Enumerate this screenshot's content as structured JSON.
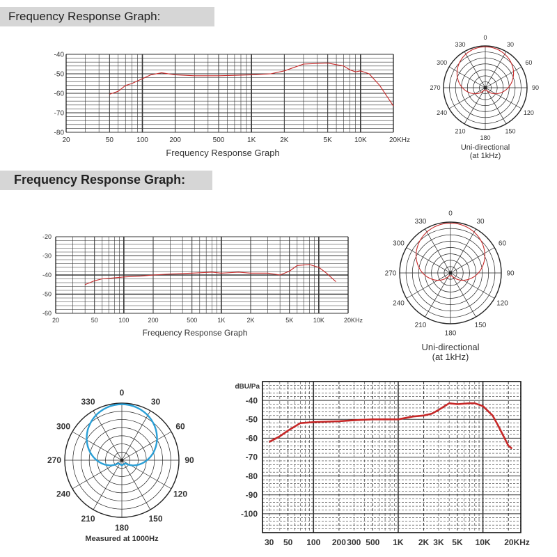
{
  "headers": {
    "top": "Frequency Response Graph:",
    "middle": "Frequency Response Graph:"
  },
  "colors": {
    "curve_red": "#c62828",
    "polar_red": "#c62828",
    "polar_blue": "#2a9fd6",
    "grid": "#333333",
    "banner": "#d6d6d6"
  },
  "freq_ticks": [
    {
      "f": 20,
      "label": "20"
    },
    {
      "f": 50,
      "label": "50"
    },
    {
      "f": 100,
      "label": "100"
    },
    {
      "f": 200,
      "label": "200"
    },
    {
      "f": 500,
      "label": "500"
    },
    {
      "f": 1000,
      "label": "1K"
    },
    {
      "f": 2000,
      "label": "2K"
    },
    {
      "f": 5000,
      "label": "5K"
    },
    {
      "f": 10000,
      "label": "10K"
    },
    {
      "f": 20000,
      "label": "20KHz"
    }
  ],
  "freq_ticks_bottom": [
    {
      "f": 30,
      "label": "30"
    },
    {
      "f": 50,
      "label": "50"
    },
    {
      "f": 100,
      "label": "100"
    },
    {
      "f": 200,
      "label": "200"
    },
    {
      "f": 300,
      "label": "300"
    },
    {
      "f": 500,
      "label": "500"
    },
    {
      "f": 1000,
      "label": "1K"
    },
    {
      "f": 2000,
      "label": "2K"
    },
    {
      "f": 3000,
      "label": "3K"
    },
    {
      "f": 5000,
      "label": "5K"
    },
    {
      "f": 10000,
      "label": "10K"
    },
    {
      "f": 20000,
      "label": "20KHz"
    }
  ],
  "polar_angle_labels": [
    "0",
    "30",
    "60",
    "90",
    "120",
    "150",
    "180",
    "210",
    "240",
    "270",
    "300",
    "330"
  ],
  "chart_data": [
    {
      "type": "line",
      "id": "fr1",
      "xlabel": "Frequency Response Graph",
      "ylabel": "",
      "x_scale": "log",
      "xlim": [
        20,
        20000
      ],
      "ylim": [
        -80,
        -40
      ],
      "yticks": [
        -40,
        -50,
        -60,
        -70,
        -80
      ],
      "grid": true,
      "series": [
        {
          "x": [
            50,
            60,
            70,
            80,
            100,
            120,
            150,
            200,
            300,
            500,
            700,
            1000,
            1500,
            2000,
            3000,
            5000,
            7000,
            8000,
            9000,
            10000,
            12000,
            15000,
            20000
          ],
          "y": [
            -60.5,
            -59,
            -56,
            -55,
            -52.5,
            -50.5,
            -49.5,
            -50.5,
            -51,
            -51,
            -50.8,
            -50.5,
            -50,
            -48.5,
            -45,
            -44.5,
            -46,
            -48,
            -49,
            -48.5,
            -50,
            -56,
            -66.5
          ]
        }
      ]
    },
    {
      "type": "polar",
      "id": "polar1",
      "caption": "Uni-directional\n(at 1kHz)",
      "pattern": "cardioid"
    },
    {
      "type": "line",
      "id": "fr2",
      "xlabel": "Frequency Response Graph",
      "ylabel": "",
      "x_scale": "log",
      "xlim": [
        20,
        20000
      ],
      "ylim": [
        -60,
        -20
      ],
      "yticks": [
        -20,
        -30,
        -40,
        -50,
        -60
      ],
      "grid": true,
      "series": [
        {
          "x": [
            40,
            50,
            60,
            80,
            100,
            150,
            200,
            300,
            500,
            800,
            1000,
            1500,
            2000,
            3000,
            4000,
            5000,
            6000,
            8000,
            10000,
            12000,
            15000
          ],
          "y": [
            -45,
            -43,
            -42,
            -41.5,
            -41,
            -40.5,
            -40,
            -39.5,
            -39,
            -38.5,
            -39,
            -38.5,
            -39,
            -39,
            -40,
            -38,
            -35,
            -34.5,
            -36,
            -39,
            -43.5
          ]
        }
      ]
    },
    {
      "type": "polar",
      "id": "polar2",
      "caption": "Uni-directional\n(at 1kHz)",
      "pattern": "cardioid"
    },
    {
      "type": "polar",
      "id": "polar3",
      "caption": "Measured at 1000Hz",
      "pattern": "supercardioid"
    },
    {
      "type": "line",
      "id": "fr3",
      "ylabel": "dBU/Pa",
      "xlabel": "",
      "x_scale": "log",
      "xlim": [
        25,
        28000
      ],
      "ylim": [
        -110,
        -30
      ],
      "yticks": [
        -40,
        -50,
        -60,
        -70,
        -80,
        -90,
        -100
      ],
      "grid": true,
      "series": [
        {
          "x": [
            30,
            40,
            50,
            70,
            100,
            200,
            300,
            500,
            800,
            1000,
            1500,
            2000,
            2500,
            3000,
            4000,
            5000,
            7000,
            8000,
            10000,
            13000,
            15000,
            18000,
            20000,
            22000
          ],
          "y": [
            -62,
            -59,
            -56,
            -52,
            -51.5,
            -51,
            -50.5,
            -50,
            -50,
            -50,
            -48.5,
            -48,
            -47,
            -45,
            -41.5,
            -42,
            -41.5,
            -41.5,
            -43,
            -48,
            -53,
            -60,
            -64,
            -65.5
          ]
        }
      ]
    }
  ]
}
